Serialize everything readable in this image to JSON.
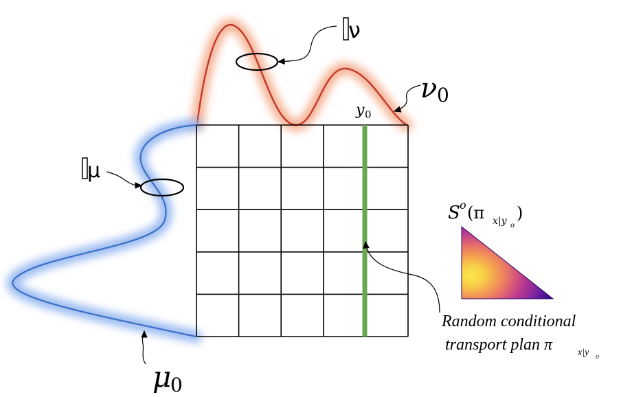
{
  "labels": {
    "P_nu": "ν",
    "nu0_sym": "ν",
    "nu0_sub": "0",
    "P_mu": "μ",
    "mu0_sym": "μ",
    "mu0_sub": "0",
    "y0_sym": "y",
    "y0_sub": "0",
    "S_sym": "S",
    "S_sup": "o",
    "S_arg_open": "(π",
    "S_arg_sub": "x|y",
    "S_arg_subsub": "o",
    "S_arg_close": ")",
    "caption_line1": "Random conditional",
    "caption_line2": "transport plan π",
    "caption_sub": "x|y",
    "caption_subsub": "o"
  },
  "colors": {
    "nu_curve": "#c0392b",
    "nu_glow": "#f4a582",
    "mu_curve": "#3a6fc4",
    "mu_glow": "#8fb3f0",
    "grid": "#000000",
    "highlight_column": "#6aa84f",
    "triangle_palette": [
      "#2b0a6b",
      "#5a1a9a",
      "#8b2a9c",
      "#b5368f",
      "#d8577a",
      "#ec8060",
      "#f5a850",
      "#f8d146",
      "#fbe850"
    ]
  },
  "grid": {
    "rows": 5,
    "cols": 5,
    "highlight_col_fraction": 0.8
  }
}
